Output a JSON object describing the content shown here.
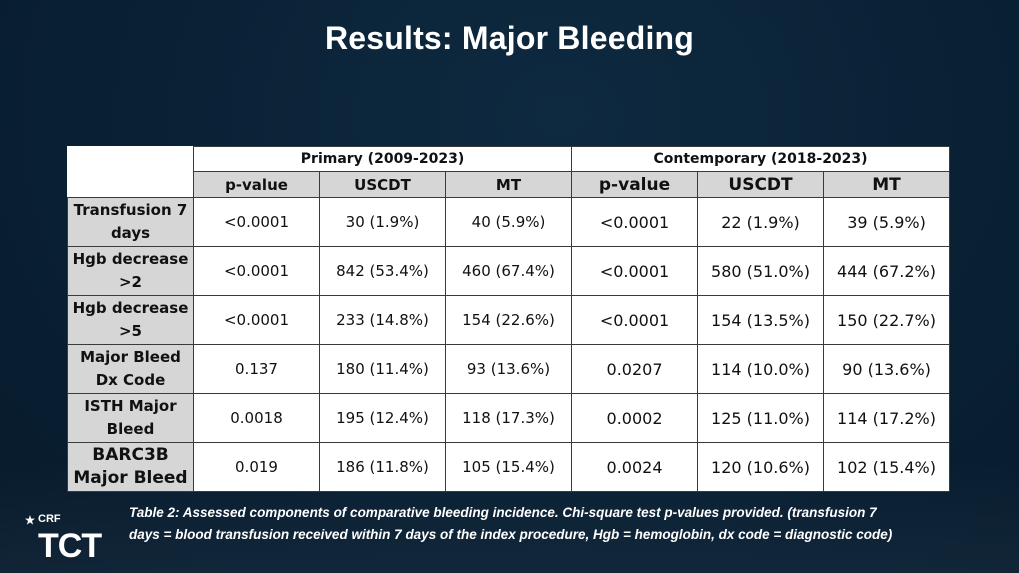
{
  "slide": {
    "title": "Results: Major Bleeding"
  },
  "table": {
    "groups": [
      {
        "label": "Primary (2009-2023)"
      },
      {
        "label": "Contemporary (2018-2023)"
      }
    ],
    "subheaders": [
      "p-value",
      "USCDT",
      "MT",
      "p-value",
      "USCDT",
      "MT"
    ],
    "rows": [
      {
        "label_lines": [
          "Transfusion 7",
          "days"
        ],
        "cells": [
          "<0.0001",
          "30 (1.9%)",
          "40 (5.9%)",
          "<0.0001",
          "22 (1.9%)",
          "39 (5.9%)"
        ]
      },
      {
        "label_lines": [
          "Hgb decrease",
          ">2"
        ],
        "cells": [
          "<0.0001",
          "842 (53.4%)",
          "460 (67.4%)",
          "<0.0001",
          "580 (51.0%)",
          "444 (67.2%)"
        ]
      },
      {
        "label_lines": [
          "Hgb decrease",
          ">5"
        ],
        "cells": [
          "<0.0001",
          "233 (14.8%)",
          "154 (22.6%)",
          "<0.0001",
          "154 (13.5%)",
          "150 (22.7%)"
        ]
      },
      {
        "label_lines": [
          "Major Bleed",
          "Dx Code"
        ],
        "cells": [
          "0.137",
          "180 (11.4%)",
          "93 (13.6%)",
          "0.0207",
          "114 (10.0%)",
          "90 (13.6%)"
        ]
      },
      {
        "label_lines": [
          "ISTH Major",
          "Bleed"
        ],
        "cells": [
          "0.0018",
          "195 (12.4%)",
          "118 (17.3%)",
          "0.0002",
          "125 (11.0%)",
          "114 (17.2%)"
        ]
      },
      {
        "label_lines": [
          "BARC3B",
          "Major Bleed"
        ],
        "cells": [
          "0.019",
          "186 (11.8%)",
          "105 (15.4%)",
          "0.0024",
          "120 (10.6%)",
          "102 (15.4%)"
        ]
      }
    ]
  },
  "caption": {
    "line1": "Table 2: Assessed components of comparative bleeding incidence. Chi-square test p-values provided. (transfusion 7",
    "line2": "days = blood transfusion received within 7 days of the index procedure, Hgb = hemoglobin, dx code = diagnostic code)"
  },
  "logo": {
    "crf": "CRF",
    "tct": "TCT"
  }
}
